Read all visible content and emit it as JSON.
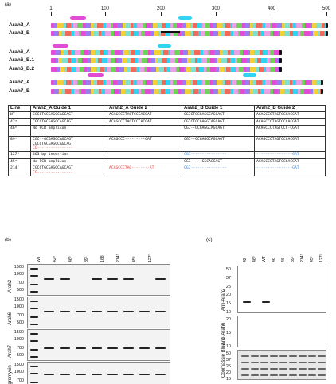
{
  "panels": {
    "a": "(a)",
    "b": "(b)",
    "c": "(c)"
  },
  "ruler": {
    "ticks": [
      "1",
      "100",
      "200",
      "300",
      "400",
      "500"
    ]
  },
  "tracks": {
    "arah2_a": "Arah2_A",
    "arah2_b": "Arah2_B",
    "arah6_a": "Arah6_A",
    "arah6_b1": "Arah6_B.1",
    "arah6_b2": "Arah6_B.2",
    "arah7_a": "Arah7_A",
    "arah7_b": "Arah7_B"
  },
  "colors": {
    "guide_magenta": "#e24bd3",
    "guide_cyan": "#32d3f0",
    "indel_red": "#e34040",
    "indel_blue": "#2f7fe0"
  },
  "table": {
    "headers": [
      "Line",
      "Arah2_A Guide 1",
      "Arah2_A Guide 2",
      "Arah2_B Guide 1",
      "Arah2_B Guide 2"
    ],
    "rows": [
      {
        "line": "WT",
        "g1": "CGCCTGCGAGGCAGCAGT",
        "g2": "ACAGCCCTAGTCCCACGAT",
        "b1": "CGCCTGCGAGGCAGCAGT",
        "b2": "ACAGCCCTAGTCCCACGAT"
      },
      {
        "line": "42ᵃ",
        "g1": "CGCCTGCGAGGCAGCAGT",
        "g2": "ACAGCCCTAGTCCCACGAT",
        "b1": "CGCCTGCGAGGCAGCAGT",
        "b2": "ACAGCCCTAGTCCCACGAT"
      },
      {
        "line": "46ᵇ",
        "g1": "No PCR amplicon",
        "g2": "",
        "b1": "CGC--GCGAGGCAGCAGT",
        "b2": "ACAGCCCTAGTCCC-CGAT"
      },
      {
        "line": "89ᶜ",
        "g1": "CGC--GCGAGGCAGCAGT",
        "g2": "ACAGCCC---------GAT",
        "b1": "CGC--GCGAGGCAGCAGT",
        "b2": "ACAGCCCTAGTCCCACGAT"
      },
      {
        "line": "127ᵈ",
        "g1": "463 bp insertion",
        "g2": "",
        "b1": "CGC----------------",
        "b2": "----------------GAT"
      },
      {
        "line": "45ᵉ",
        "g1": "No PCR amplicon",
        "g2": "",
        "b1": "CGC-----GGCAGCAGT",
        "b2": "ACAGCCCTAGTCCCACGAT"
      },
      {
        "line": "214ᶠ",
        "g1": "CGCCTGCGAGGCAGCAGT",
        "g2": "ACAGCCCTAG--------AT",
        "b1": "CGC----------------",
        "b2": "----------------GAT"
      }
    ],
    "extra_89_g1": [
      "CGCCTGCGAGGCAGCAGT",
      "CG----------------"
    ],
    "extra_214_g1": "CG----------------"
  },
  "gels": {
    "labels": [
      "Arah2",
      "Arah6",
      "Arah7",
      "Hygromycin"
    ],
    "lanes": [
      "WT",
      "42ᵃ",
      "46ᵇ",
      "89ᶜ",
      "168",
      "214ᶠ",
      "45ᵉ",
      "127ᵈ"
    ],
    "markers": [
      "1500",
      "1000",
      "700",
      "500"
    ]
  },
  "western": {
    "lanes": [
      "42",
      "46ᵇ",
      "WT",
      "46",
      "46",
      "89ᶜ",
      "214ᶠ",
      "45ᵉ",
      "127ᵈ"
    ],
    "labels": [
      "Anti-Arah2",
      "Anti-Arah6",
      "Coomassie Blue"
    ],
    "mw_top": [
      "50",
      "37",
      "25",
      "20",
      "15",
      "10"
    ],
    "mw_mid": [
      "20",
      "15",
      "10"
    ],
    "mw_bottom": [
      "50",
      "37",
      "25",
      "20",
      "15"
    ]
  }
}
